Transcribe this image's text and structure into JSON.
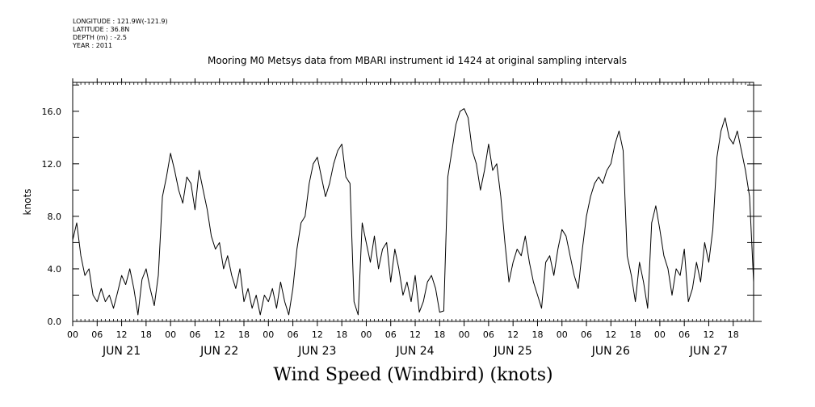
{
  "meta": {
    "longitude": "LONGITUDE : 121.9W(-121.9)",
    "latitude": "LATITUDE : 36.8N",
    "depth": "DEPTH (m) : -2.5",
    "year": "YEAR : 2011"
  },
  "chart_data": {
    "type": "line",
    "title": "Mooring M0 Metsys data from MBARI instrument id 1424 at original sampling intervals",
    "caption": "Wind Speed (Windbird) (knots)",
    "ylabel": "knots",
    "xlabel": "",
    "ylim": [
      0,
      18.2
    ],
    "xlim": [
      0,
      167
    ],
    "yticks": [
      0,
      4,
      8,
      12,
      16
    ],
    "ytick_labels": [
      "0.0",
      "4.0",
      "8.0",
      "12.0",
      "16.0"
    ],
    "x_units": "hours since JUN 21 00",
    "xtick_hours": [
      0,
      6,
      12,
      18,
      24,
      30,
      36,
      42,
      48,
      54,
      60,
      66,
      72,
      78,
      84,
      90,
      96,
      102,
      108,
      114,
      120,
      126,
      132,
      138,
      144,
      150,
      156,
      162
    ],
    "xtick_labels": [
      "00",
      "06",
      "12",
      "18",
      "00",
      "06",
      "12",
      "18",
      "00",
      "06",
      "12",
      "18",
      "00",
      "06",
      "12",
      "18",
      "00",
      "06",
      "12",
      "18",
      "00",
      "06",
      "12",
      "18",
      "00",
      "06",
      "12",
      "18"
    ],
    "day_labels": [
      "JUN 21",
      "JUN 22",
      "JUN 23",
      "JUN 24",
      "JUN 25",
      "JUN 26",
      "JUN 27"
    ],
    "day_label_hours": [
      12,
      36,
      60,
      84,
      108,
      132,
      156
    ],
    "grid": false,
    "series": [
      {
        "name": "",
        "color": "#000000",
        "x": [
          0,
          1,
          2,
          3,
          4,
          5,
          6,
          7,
          8,
          9,
          10,
          11,
          12,
          13,
          14,
          15,
          16,
          17,
          18,
          19,
          20,
          21,
          22,
          23,
          24,
          25,
          26,
          27,
          28,
          29,
          30,
          31,
          32,
          33,
          34,
          35,
          36,
          37,
          38,
          39,
          40,
          41,
          42,
          43,
          44,
          45,
          46,
          47,
          48,
          49,
          50,
          51,
          52,
          53,
          54,
          55,
          56,
          57,
          58,
          59,
          60,
          61,
          62,
          63,
          64,
          65,
          66,
          67,
          68,
          69,
          70,
          71,
          72,
          73,
          74,
          75,
          76,
          77,
          78,
          79,
          80,
          81,
          82,
          83,
          84,
          85,
          86,
          87,
          88,
          89,
          90,
          91,
          92,
          93,
          94,
          95,
          96,
          97,
          98,
          99,
          100,
          101,
          102,
          103,
          104,
          105,
          106,
          107,
          108,
          109,
          110,
          111,
          112,
          113,
          114,
          115,
          116,
          117,
          118,
          119,
          120,
          121,
          122,
          123,
          124,
          125,
          126,
          127,
          128,
          129,
          130,
          131,
          132,
          133,
          134,
          135,
          136,
          137,
          138,
          139,
          140,
          141,
          142,
          143,
          144,
          145,
          146,
          147,
          148,
          149,
          150,
          151,
          152,
          153,
          154,
          155,
          156,
          157,
          158,
          159,
          160,
          161,
          162,
          163,
          164,
          165,
          166,
          167
        ],
        "values": [
          6.2,
          7.5,
          5.0,
          3.5,
          4.0,
          2.0,
          1.5,
          2.5,
          1.5,
          2.0,
          1.0,
          2.2,
          3.5,
          2.8,
          4.0,
          2.5,
          0.5,
          3.2,
          4.0,
          2.5,
          1.2,
          3.5,
          9.5,
          11.0,
          12.8,
          11.5,
          10.0,
          9.0,
          11.0,
          10.5,
          8.5,
          11.5,
          10.0,
          8.5,
          6.5,
          5.5,
          6.0,
          4.0,
          5.0,
          3.5,
          2.5,
          4.0,
          1.5,
          2.5,
          1.0,
          2.0,
          0.5,
          2.0,
          1.5,
          2.5,
          1.0,
          3.0,
          1.5,
          0.5,
          2.5,
          5.5,
          7.5,
          8.0,
          10.5,
          12.0,
          12.5,
          11.0,
          9.5,
          10.5,
          12.0,
          13.0,
          13.5,
          11.0,
          10.5,
          1.5,
          0.5,
          7.5,
          6.0,
          4.5,
          6.5,
          4.0,
          5.5,
          6.0,
          3.0,
          5.5,
          4.0,
          2.0,
          3.0,
          1.5,
          3.5,
          0.7,
          1.5,
          3.0,
          3.5,
          2.5,
          0.7,
          0.8,
          11.0,
          13.0,
          15.0,
          16.0,
          16.2,
          15.5,
          13.0,
          12.0,
          10.0,
          11.5,
          13.5,
          11.5,
          12.0,
          9.5,
          6.0,
          3.0,
          4.5,
          5.5,
          5.0,
          6.5,
          4.5,
          3.0,
          2.0,
          1.0,
          4.5,
          5.0,
          3.5,
          5.5,
          7.0,
          6.5,
          5.0,
          3.5,
          2.5,
          5.5,
          8.0,
          9.5,
          10.5,
          11.0,
          10.5,
          11.5,
          12.0,
          13.5,
          14.5,
          13.0,
          5.0,
          3.5,
          1.5,
          4.5,
          3.0,
          1.0,
          7.5,
          8.8,
          7.0,
          5.0,
          4.0,
          2.0,
          4.0,
          3.5,
          5.5,
          1.5,
          2.5,
          4.5,
          3.0,
          6.0,
          4.5,
          7.0,
          12.5,
          14.5,
          15.5,
          14.0,
          13.5,
          14.5,
          13.0,
          11.5,
          9.5,
          3.0
        ]
      }
    ]
  }
}
